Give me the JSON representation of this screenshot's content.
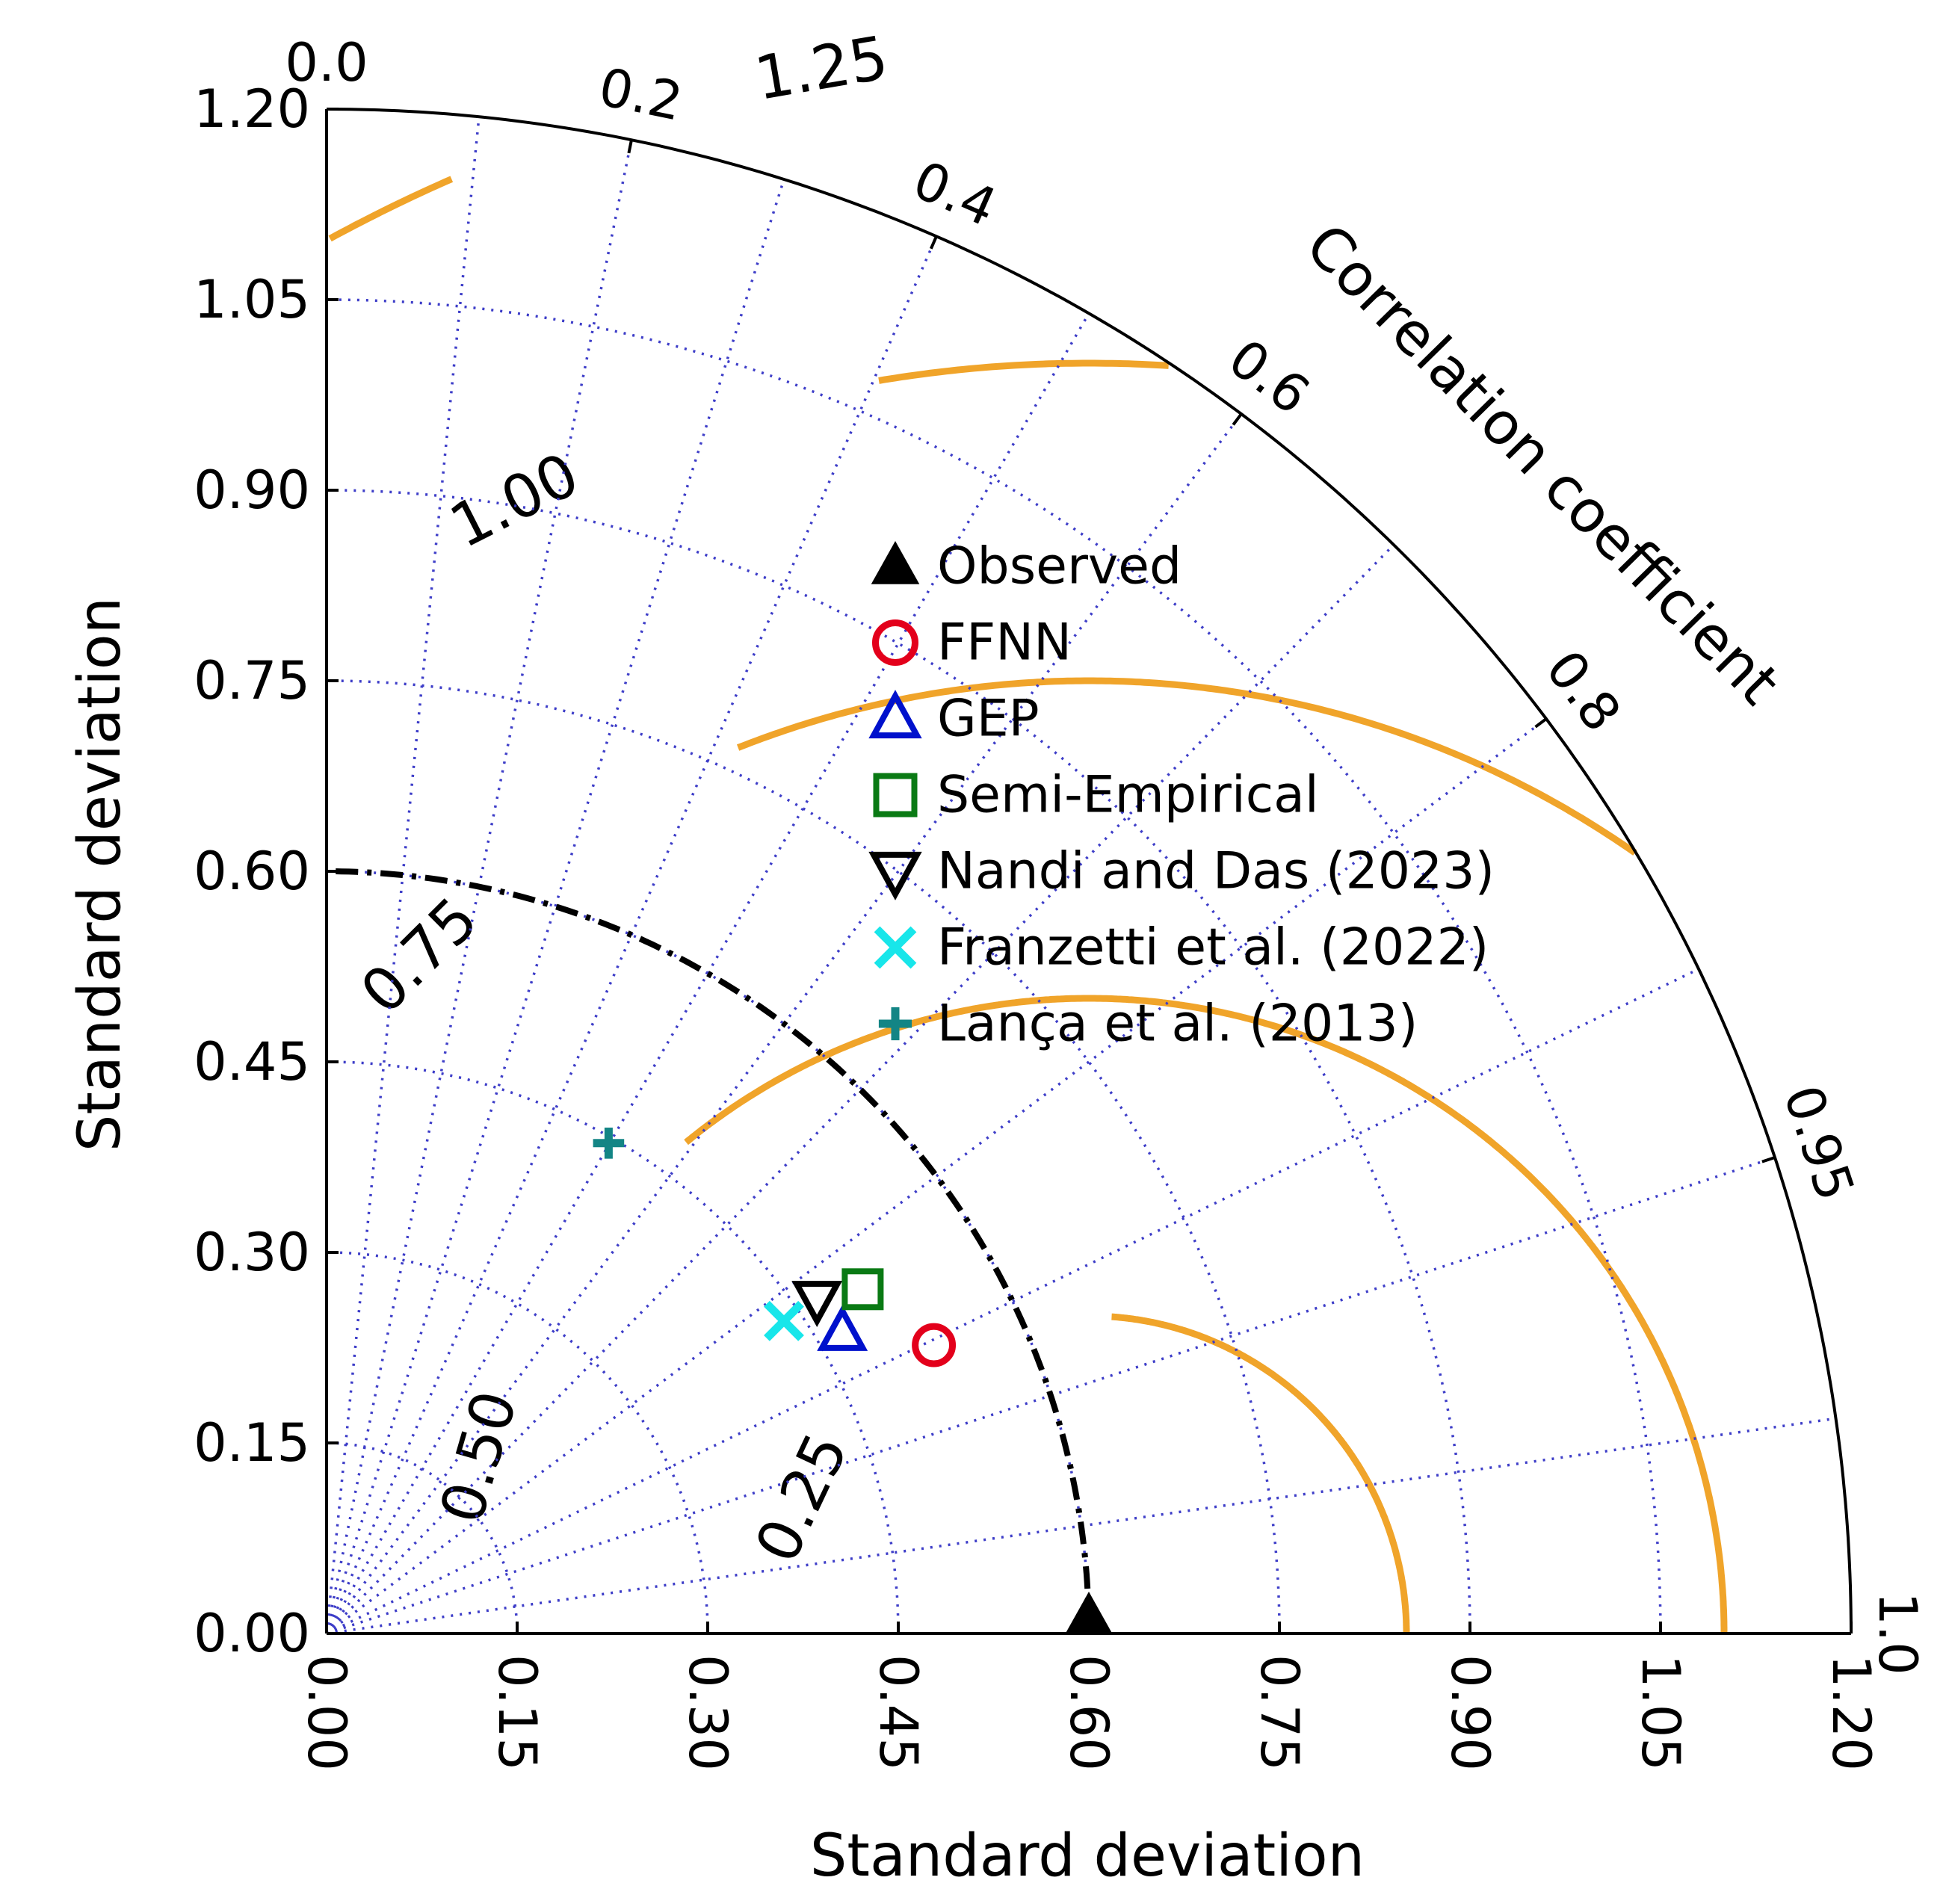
{
  "chart_data": {
    "type": "taylor-diagram",
    "title": "",
    "xlabel": "Standard deviation",
    "ylabel": "Standard deviation",
    "corr_label": "Correlation coefficient",
    "std_range": [
      0,
      1.2
    ],
    "std_ticks": [
      "0.00",
      "0.15",
      "0.30",
      "0.45",
      "0.60",
      "0.75",
      "0.90",
      "1.05",
      "1.20"
    ],
    "corr_ticks": [
      {
        "value": 0.0,
        "label": "0.0"
      },
      {
        "value": 0.2,
        "label": "0.2"
      },
      {
        "value": 0.4,
        "label": "0.4"
      },
      {
        "value": 0.6,
        "label": "0.6"
      },
      {
        "value": 0.8,
        "label": "0.8"
      },
      {
        "value": 0.95,
        "label": "0.95"
      },
      {
        "value": 1.0,
        "label": "1.0"
      }
    ],
    "reference_std": 0.6,
    "rmsd_contours": [
      {
        "value": 0.25,
        "label": "0.25"
      },
      {
        "value": 0.5,
        "label": "0.50"
      },
      {
        "value": 0.75,
        "label": "0.75"
      },
      {
        "value": 1.0,
        "label": "1.00"
      },
      {
        "value": 1.25,
        "label": "1.25"
      }
    ],
    "legend_position": "center",
    "points": [
      {
        "name": "Observed",
        "x": 0.6,
        "y": 0.0,
        "marker": "triangle-filled",
        "color": "#000000"
      },
      {
        "name": "FFNN",
        "x": 0.478,
        "y": 0.227,
        "marker": "circle-open",
        "color": "#e3001b"
      },
      {
        "name": "GEP",
        "x": 0.406,
        "y": 0.237,
        "marker": "triangle-open",
        "color": "#0011cc"
      },
      {
        "name": "Semi-Empirical",
        "x": 0.422,
        "y": 0.271,
        "marker": "square-open",
        "color": "#0a7a14"
      },
      {
        "name": "Nandi and Das (2023)",
        "x": 0.386,
        "y": 0.263,
        "marker": "triangle-down-open",
        "color": "#000000"
      },
      {
        "name": "Franzetti et al. (2022)",
        "x": 0.36,
        "y": 0.246,
        "marker": "x",
        "color": "#18e6ea"
      },
      {
        "name": "Lança et al. (2013)",
        "x": 0.222,
        "y": 0.386,
        "marker": "plus",
        "color": "#138585"
      }
    ],
    "colors": {
      "rmsd": "#f0a42a",
      "grid": "#3d3dc8",
      "axis": "#000000",
      "reference": "#000000"
    }
  }
}
